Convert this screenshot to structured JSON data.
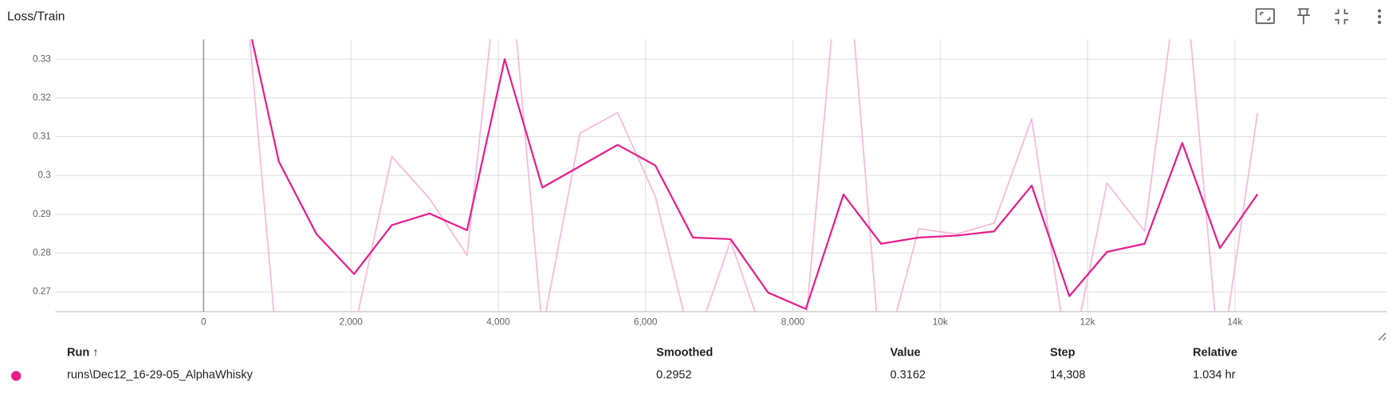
{
  "chart_data": {
    "type": "line",
    "title": "Loss/Train",
    "x": [
      511,
      1022,
      1533,
      2044,
      2555,
      3066,
      3577,
      4088,
      4599,
      5110,
      5621,
      6132,
      6643,
      7154,
      7665,
      8176,
      8687,
      9198,
      9709,
      10220,
      10731,
      11242,
      11753,
      12264,
      12775,
      13286,
      13797,
      14308
    ],
    "series": [
      {
        "color": "#f8bbd9",
        "values": [
          0.36,
          0.25,
          0.255,
          0.26,
          0.3049,
          0.2941,
          0.2794,
          0.37,
          0.26,
          0.3109,
          0.3162,
          0.2946,
          0.255,
          0.2831,
          0.255,
          0.262,
          0.37,
          0.25,
          0.2863,
          0.2849,
          0.2877,
          0.3146,
          0.25,
          0.298,
          0.2856,
          0.36,
          0.25,
          0.3162
        ]
      },
      {
        "color": "#e91e8c",
        "values": [
          0.3477,
          0.3036,
          0.2849,
          0.2746,
          0.2872,
          0.2902,
          0.2859,
          0.33,
          0.2969,
          0.3024,
          0.3079,
          0.3026,
          0.284,
          0.2836,
          0.2698,
          0.2656,
          0.2951,
          0.2824,
          0.284,
          0.2845,
          0.2856,
          0.2974,
          0.2689,
          0.2803,
          0.2824,
          0.3084,
          0.2813,
          0.2952
        ]
      }
    ],
    "xlim": [
      -2012,
      16060
    ],
    "xticks": [
      0,
      {
        "value": 2000,
        "label": "2,000"
      },
      {
        "value": 4000,
        "label": "4,000"
      },
      {
        "value": 6000,
        "label": "6,000"
      },
      {
        "value": 8000,
        "label": "8,000"
      },
      {
        "value": 10000,
        "label": "10k"
      },
      {
        "value": 12000,
        "label": "12k"
      },
      {
        "value": 14000,
        "label": "14k"
      }
    ],
    "ylim": [
      0.2649,
      0.3351
    ],
    "yticks": [
      0.27,
      0.28,
      0.29,
      0.3,
      0.31,
      0.32,
      0.33
    ],
    "grid": true
  },
  "run_table": {
    "headers": [
      "Run ↑",
      "Smoothed",
      "Value",
      "Step",
      "Relative"
    ],
    "rows": [
      [
        "runs\\Dec12_16-29-05_AlphaWhisky",
        "0.2952",
        "0.3162",
        "14,308",
        "1.034 hr"
      ]
    ],
    "run_color": "#e91e8c"
  }
}
